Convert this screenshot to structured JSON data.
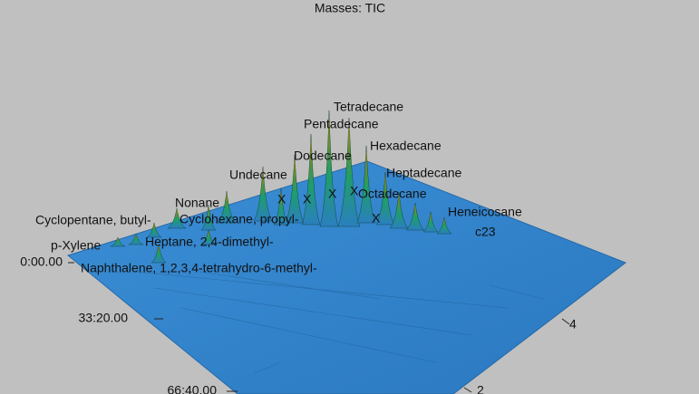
{
  "title": "Masses:  TIC",
  "peak_labels": [
    "Tetradecane",
    "Pentadecane",
    "Hexadecane",
    "Dodecane",
    "Heptadecane",
    "Undecane",
    "Octadecane",
    "Nonane",
    "Heneicosane",
    "Cyclopentane, butyl-",
    "Cyclohexane, propyl-",
    "c23",
    "p-Xylene",
    "Heptane, 2,4-dimethyl-",
    "Naphthalene, 1,2,3,4-tetrahydro-6-methyl-"
  ],
  "markers": [
    "X",
    "X",
    "X",
    "X",
    "X"
  ],
  "axes": {
    "time_ticks": [
      "0:00.00",
      "33:20.00",
      "66:40.00"
    ],
    "second_ticks": [
      "4",
      "2"
    ]
  }
}
